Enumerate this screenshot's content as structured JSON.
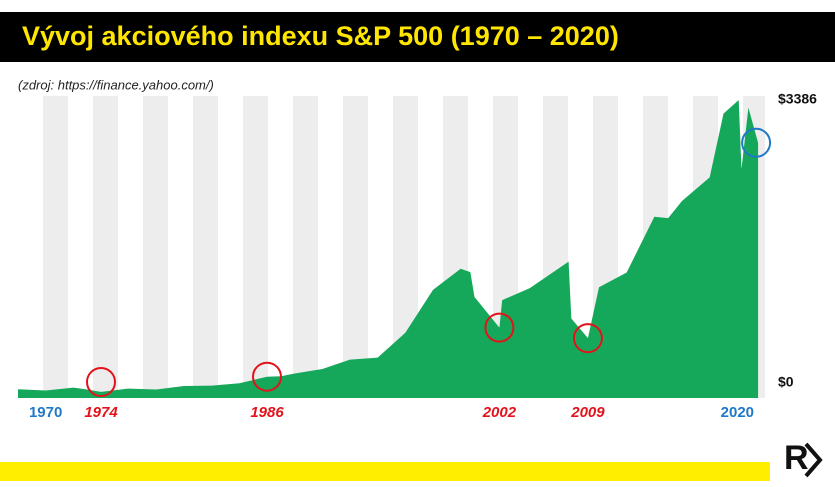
{
  "chart_data": {
    "type": "area",
    "title": "Vývoj akciového indexu S&P 500 (1970 – 2020)",
    "subtitle": "(zdroj: https://finance.yahoo.com/)",
    "color": "#16a85a",
    "x": [
      1968,
      1970,
      1972,
      1973,
      1974,
      1976,
      1978,
      1980,
      1982,
      1984,
      1986,
      1987,
      1988,
      1990,
      1992,
      1994,
      1996,
      1998,
      2000,
      2000.7,
      2001,
      2002.8,
      2003,
      2005,
      2007.8,
      2008,
      2009.2,
      2010,
      2012,
      2014,
      2015,
      2016,
      2018,
      2019,
      2020.1,
      2020.3,
      2020.8,
      2021.5
    ],
    "values": [
      100,
      85,
      118,
      97,
      69,
      107,
      96,
      136,
      141,
      167,
      242,
      247,
      278,
      330,
      436,
      459,
      741,
      1229,
      1469,
      1430,
      1148,
      800,
      1112,
      1248,
      1549,
      903,
      680,
      1258,
      1426,
      2059,
      2044,
      2239,
      2507,
      3231,
      3386,
      2600,
      3300,
      2900
    ],
    "xlim": [
      1968,
      2022
    ],
    "xticks": [
      1970,
      2020
    ],
    "ylim": [
      0,
      3386
    ],
    "yticks": [
      {
        "value": 0,
        "label": "$0"
      },
      {
        "value": 3386,
        "label": "$3386"
      }
    ],
    "annotations": [
      {
        "label": "1974",
        "x": 1974
      },
      {
        "label": "1986",
        "x": 1986
      },
      {
        "label": "2002",
        "x": 2002.8
      },
      {
        "label": "2009",
        "x": 2009.2
      }
    ],
    "logo": "R"
  }
}
